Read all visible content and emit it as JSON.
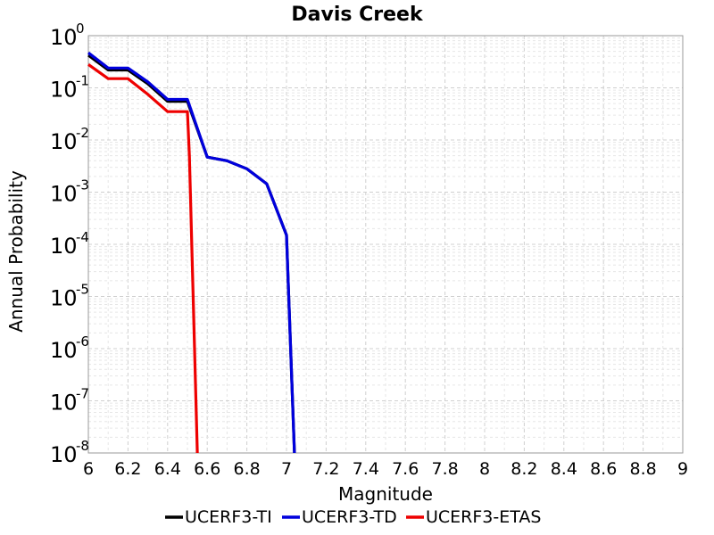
{
  "chart_data": {
    "type": "line",
    "title": "Davis Creek",
    "xlabel": "Magnitude",
    "ylabel": "Annual Probability",
    "xlim": [
      6,
      9
    ],
    "ylim": [
      1e-08,
      1
    ],
    "y_scale": "log",
    "x_ticks": [
      "6",
      "6.2",
      "6.4",
      "6.6",
      "6.8",
      "7",
      "7.2",
      "7.4",
      "7.6",
      "7.8",
      "8",
      "8.2",
      "8.4",
      "8.6",
      "8.8",
      "9"
    ],
    "y_ticks": [
      {
        "base": "10",
        "exp": "0"
      },
      {
        "base": "10",
        "exp": "-1"
      },
      {
        "base": "10",
        "exp": "-2"
      },
      {
        "base": "10",
        "exp": "-3"
      },
      {
        "base": "10",
        "exp": "-4"
      },
      {
        "base": "10",
        "exp": "-5"
      },
      {
        "base": "10",
        "exp": "-6"
      },
      {
        "base": "10",
        "exp": "-7"
      },
      {
        "base": "10",
        "exp": "-8"
      }
    ],
    "grid": true,
    "legend_position": "bottom",
    "series": [
      {
        "name": "UCERF3-TI",
        "color": "#000000",
        "x": [
          6.0,
          6.1,
          6.2,
          6.3,
          6.4,
          6.5,
          6.6,
          6.7,
          6.8,
          6.9,
          7.0,
          7.04
        ],
        "y": [
          0.42,
          0.22,
          0.22,
          0.12,
          0.055,
          0.055,
          0.0047,
          0.004,
          0.0028,
          0.00145,
          0.00015,
          1e-08
        ]
      },
      {
        "name": "UCERF3-TD",
        "color": "#0000dd",
        "x": [
          6.0,
          6.1,
          6.2,
          6.3,
          6.4,
          6.5,
          6.6,
          6.7,
          6.8,
          6.9,
          7.0,
          7.04
        ],
        "y": [
          0.47,
          0.24,
          0.24,
          0.13,
          0.06,
          0.06,
          0.0047,
          0.004,
          0.0028,
          0.00145,
          0.00015,
          1e-08
        ]
      },
      {
        "name": "UCERF3-ETAS",
        "color": "#ee0000",
        "x": [
          6.0,
          6.1,
          6.2,
          6.3,
          6.4,
          6.5,
          6.51,
          6.55
        ],
        "y": [
          0.28,
          0.15,
          0.15,
          0.075,
          0.035,
          0.035,
          0.005,
          1e-08
        ]
      }
    ]
  }
}
